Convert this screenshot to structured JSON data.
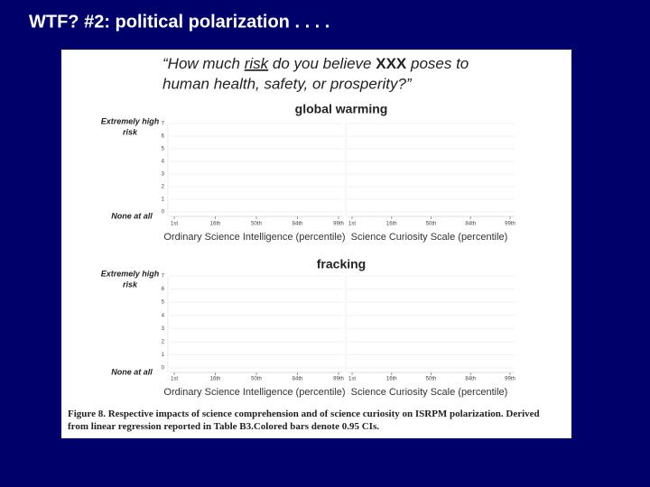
{
  "slide": {
    "title": "WTF?  #2: political polarization . . . ."
  },
  "figure": {
    "question": {
      "line1": [
        "“How much ",
        "risk",
        " do you believe ",
        "XXX",
        " poses to"
      ],
      "line2": "human health, safety, or prosperity?”"
    },
    "panels": [
      {
        "title": "global warming",
        "top_label": [
          "Extremely high",
          "risk"
        ],
        "bottom_label": "None at all",
        "yticks": [
          0,
          1,
          2,
          3,
          4,
          5,
          6,
          7
        ],
        "charts": [
          {
            "xlabel": "Ordinary Science Intelligence (percentile)",
            "xticks": [
              "1st",
              "16th",
              "50th",
              "84th",
              "99th"
            ]
          },
          {
            "xlabel": "Science Curiosity Scale (percentile)",
            "xticks": [
              "1st",
              "16th",
              "50th",
              "84th",
              "99th"
            ]
          }
        ]
      },
      {
        "title": "fracking",
        "top_label": [
          "Extremely high",
          "risk"
        ],
        "bottom_label": "None at all",
        "yticks": [
          0,
          1,
          2,
          3,
          4,
          5,
          6,
          7
        ],
        "charts": [
          {
            "xlabel": "Ordinary Science Intelligence (percentile)",
            "xticks": [
              "1st",
              "16th",
              "50th",
              "84th",
              "99th"
            ]
          },
          {
            "xlabel": "Science Curiosity Scale (percentile)",
            "xticks": [
              "1st",
              "16th",
              "50th",
              "84th",
              "99th"
            ]
          }
        ]
      }
    ],
    "caption": "Figure 8. Respective impacts of science comprehension and of science curiosity on ISRPM polarization. Derived from linear regression reported in Table B3.Colored bars denote 0.95 CIs."
  }
}
